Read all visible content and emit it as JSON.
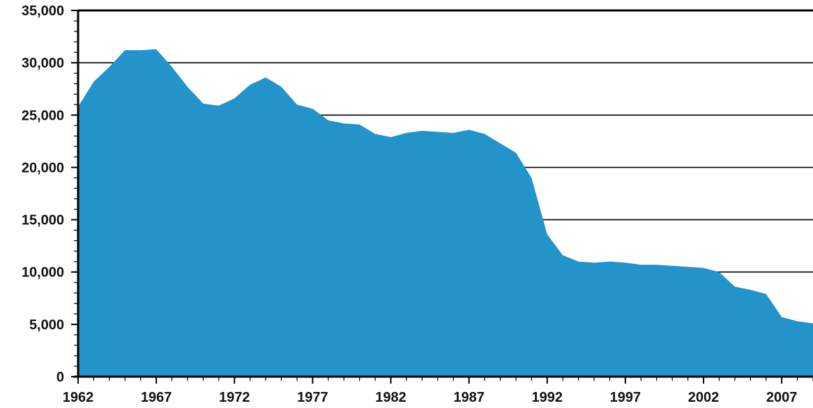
{
  "chart_data": {
    "type": "area",
    "title": "",
    "xlabel": "",
    "ylabel": "",
    "x": [
      1962,
      1963,
      1964,
      1965,
      1966,
      1967,
      1968,
      1969,
      1970,
      1971,
      1972,
      1973,
      1974,
      1975,
      1976,
      1977,
      1978,
      1979,
      1980,
      1981,
      1982,
      1983,
      1984,
      1985,
      1986,
      1987,
      1988,
      1989,
      1990,
      1991,
      1992,
      1993,
      1994,
      1995,
      1996,
      1997,
      1998,
      1999,
      2000,
      2001,
      2002,
      2003,
      2004,
      2005,
      2006,
      2007,
      2008,
      2009
    ],
    "series": [
      {
        "values": [
          25800,
          28200,
          29600,
          31200,
          31200,
          31300,
          29600,
          27700,
          26100,
          25900,
          26600,
          27900,
          28600,
          27700,
          26000,
          25600,
          24500,
          24200,
          24100,
          23200,
          22900,
          23300,
          23500,
          23400,
          23300,
          23600,
          23200,
          22300,
          21400,
          19000,
          13600,
          11600,
          11000,
          10900,
          11000,
          10900,
          10700,
          10700,
          10600,
          10500,
          10400,
          10000,
          8600,
          8300,
          7900,
          5700,
          5300,
          5100
        ]
      }
    ],
    "x_ticks": [
      "1962",
      "1967",
      "1972",
      "1977",
      "1982",
      "1987",
      "1992",
      "1997",
      "2002",
      "2007"
    ],
    "y_ticks": [
      "35,000",
      "30,000",
      "25,000",
      "20,000",
      "15,000",
      "10,000",
      "5,000",
      "0"
    ],
    "xlim": [
      1962,
      2009
    ],
    "ylim": [
      0,
      35000
    ],
    "grid": "horizontal",
    "fill_color": "#2394c9",
    "legend": "none"
  }
}
